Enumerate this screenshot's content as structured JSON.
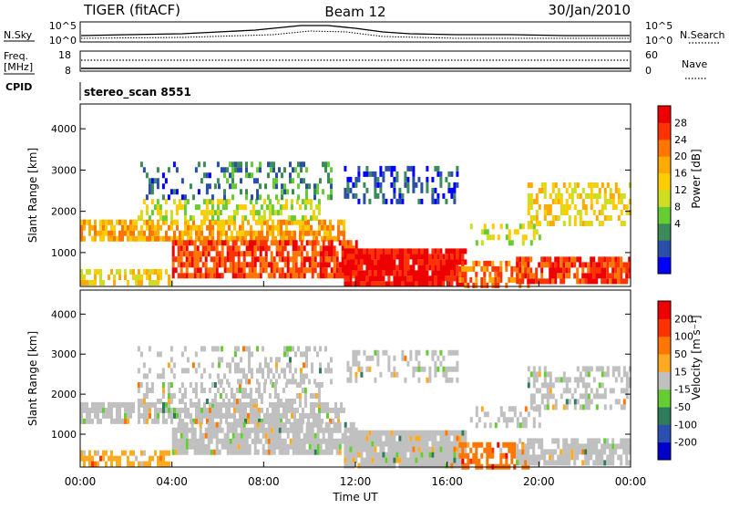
{
  "header": {
    "radar": "TIGER (fitACF)",
    "beam": "Beam 12",
    "date": "30/Jan/2010"
  },
  "top_panels": {
    "nsky_label": "N.Sky",
    "nsky_ticks": [
      "10^5",
      "10^0"
    ],
    "nsearch_label": "N.Search",
    "nsearch_ticks": [
      "10^5",
      "10^0"
    ],
    "freq_label": "Freq.",
    "freq_unit": "[MHz]",
    "freq_ticks": [
      "18",
      "8"
    ],
    "nave_label": "Nave",
    "nave_ticks": [
      "60",
      "0"
    ],
    "cpid_label": "CPID",
    "cpid_value": "stereo_scan 8551"
  },
  "chart_data": [
    {
      "type": "heatmap",
      "panel": "power",
      "ylabel": "Slant Range [km]",
      "ylim": [
        180,
        4600
      ],
      "yticks": [
        "1000",
        "2000",
        "3000",
        "4000"
      ],
      "xticks": [
        "00:00",
        "04:00",
        "08:00",
        "12:00",
        "16:00",
        "20:00",
        "00:00"
      ],
      "colorbar": {
        "label": "Power [dB]",
        "ticks": [
          "28",
          "24",
          "20",
          "16",
          "12",
          "8",
          "4"
        ],
        "colors": [
          "#0000ff",
          "#2b4fa8",
          "#3a8a5a",
          "#66cc33",
          "#ccdd22",
          "#ffcc00",
          "#ffaa00",
          "#ff7700",
          "#ff3300",
          "#ee0000"
        ]
      }
    },
    {
      "type": "heatmap",
      "panel": "velocity",
      "ylabel": "Slant Range [km]",
      "ylim": [
        180,
        4600
      ],
      "yticks": [
        "1000",
        "2000",
        "3000",
        "4000"
      ],
      "xticks": [
        "00:00",
        "04:00",
        "08:00",
        "12:00",
        "16:00",
        "20:00",
        "00:00"
      ],
      "xlabel": "Time UT",
      "colorbar": {
        "label": "Velocity [m s⁻¹]",
        "ticks": [
          "200",
          "100",
          "50",
          "15",
          "-15",
          "-50",
          "-100",
          "-200"
        ],
        "colors": [
          "#0000cc",
          "#2a4fb0",
          "#2e7d5a",
          "#66cc33",
          "#c0c0c0",
          "#ffaa22",
          "#ff7700",
          "#ff3300",
          "#ee0000"
        ]
      }
    }
  ]
}
